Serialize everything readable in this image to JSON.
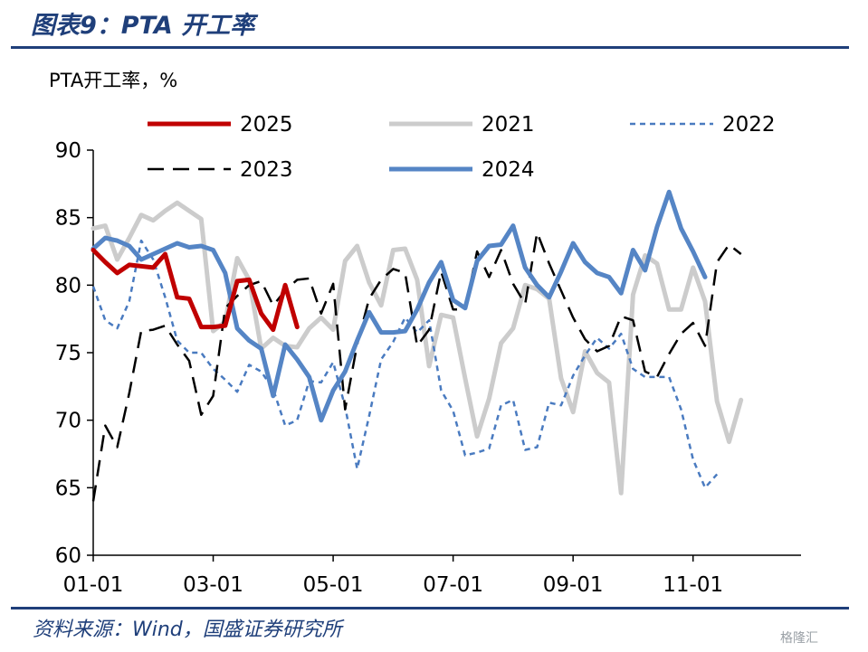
{
  "header": {
    "title": "图表9：PTA 开工率"
  },
  "footer": {
    "source": "资料来源：Wind，国盛证券研究所",
    "watermark": "格隆汇"
  },
  "colors": {
    "brand": "#1f3f7a",
    "s2025": "#c00000",
    "s2021": "#cccccc",
    "s2022": "#4a7bc0",
    "s2023": "#000000",
    "s2024": "#5585c5"
  },
  "chart_data": {
    "type": "line",
    "ylabel": "PTA开工率，%",
    "ylim": [
      60,
      90
    ],
    "yticks": [
      60,
      65,
      70,
      75,
      80,
      85,
      90
    ],
    "xlim": [
      0,
      59
    ],
    "xticks": [
      {
        "label": "01-01",
        "pos": 0
      },
      {
        "label": "03-01",
        "pos": 10
      },
      {
        "label": "05-01",
        "pos": 20
      },
      {
        "label": "07-01",
        "pos": 30
      },
      {
        "label": "09-01",
        "pos": 40
      },
      {
        "label": "11-01",
        "pos": 50
      }
    ],
    "grid": false,
    "legend_position": "top",
    "series": [
      {
        "name": "2025",
        "color": "#c00000",
        "style": "solid",
        "width": 5,
        "values": [
          82.6,
          81.7,
          80.9,
          81.5,
          81.4,
          81.3,
          82.3,
          79.1,
          79.0,
          76.9,
          76.9,
          77.0,
          80.3,
          80.4,
          77.9,
          76.7,
          80.0,
          76.9
        ]
      },
      {
        "name": "2021",
        "color": "#cccccc",
        "style": "solid",
        "width": 5,
        "values": [
          84.2,
          84.4,
          81.9,
          83.5,
          85.2,
          84.8,
          85.5,
          86.1,
          85.5,
          84.9,
          76.6,
          77.3,
          82.0,
          80.4,
          75.3,
          76.1,
          75.5,
          75.4,
          76.8,
          77.6,
          76.7,
          81.8,
          82.9,
          80.2,
          78.5,
          82.6,
          82.7,
          80.4,
          74.0,
          77.8,
          77.6,
          73.1,
          68.8,
          71.6,
          75.7,
          76.8,
          80.0,
          79.7,
          79.0,
          73.1,
          70.6,
          75.1,
          73.5,
          72.8,
          64.6,
          79.3,
          82.2,
          81.6,
          78.2,
          78.2,
          81.3,
          78.8,
          71.4,
          68.4,
          71.5
        ]
      },
      {
        "name": "2022",
        "color": "#4a7bc0",
        "style": "dotted",
        "width": 2.5,
        "values": [
          79.9,
          77.4,
          76.8,
          78.8,
          83.3,
          81.9,
          79.1,
          75.9,
          75.0,
          75.0,
          73.8,
          73.0,
          72.1,
          74.1,
          73.6,
          72.3,
          69.6,
          70.0,
          72.9,
          72.8,
          74.3,
          71.0,
          66.4,
          70.3,
          74.5,
          75.8,
          77.6,
          76.5,
          77.4,
          72.2,
          70.7,
          67.4,
          67.6,
          67.9,
          71.1,
          71.5,
          67.8,
          68.0,
          71.3,
          71.1,
          73.3,
          74.8,
          76.1,
          75.3,
          76.4,
          73.8,
          73.2,
          73.2,
          73.2,
          70.8,
          67.1,
          65.0,
          66.0
        ]
      },
      {
        "name": "2023",
        "color": "#000000",
        "style": "dashed",
        "width": 2.5,
        "values": [
          64.0,
          69.6,
          68.0,
          72.0,
          76.6,
          76.7,
          77.0,
          75.6,
          74.4,
          70.4,
          71.8,
          78.3,
          79.2,
          80.0,
          80.3,
          78.5,
          79.6,
          80.4,
          80.5,
          77.9,
          80.1,
          70.8,
          75.6,
          79.0,
          80.4,
          81.2,
          80.9,
          75.5,
          76.7,
          81.0,
          78.2,
          78.2,
          82.5,
          80.6,
          82.6,
          80.1,
          78.6,
          83.9,
          81.6,
          79.6,
          77.6,
          76.0,
          75.1,
          75.5,
          77.7,
          77.4,
          73.6,
          73.2,
          74.9,
          76.4,
          77.2,
          75.5,
          81.7,
          83.0,
          82.3
        ]
      },
      {
        "name": "2024",
        "color": "#5585c5",
        "style": "solid",
        "width": 5,
        "values": [
          82.7,
          83.5,
          83.3,
          82.9,
          81.9,
          82.3,
          82.7,
          83.1,
          82.8,
          82.9,
          82.6,
          80.9,
          76.8,
          75.9,
          75.3,
          71.8,
          75.6,
          74.5,
          73.2,
          70.0,
          72.2,
          73.6,
          75.9,
          78.0,
          76.5,
          76.5,
          76.6,
          78.2,
          80.2,
          81.7,
          78.9,
          78.3,
          81.8,
          82.9,
          83.0,
          84.4,
          81.3,
          80.0,
          79.1,
          81.0,
          83.1,
          81.7,
          80.9,
          80.6,
          79.4,
          82.6,
          81.1,
          84.3,
          86.9,
          84.2,
          82.5,
          80.6
        ]
      }
    ]
  }
}
